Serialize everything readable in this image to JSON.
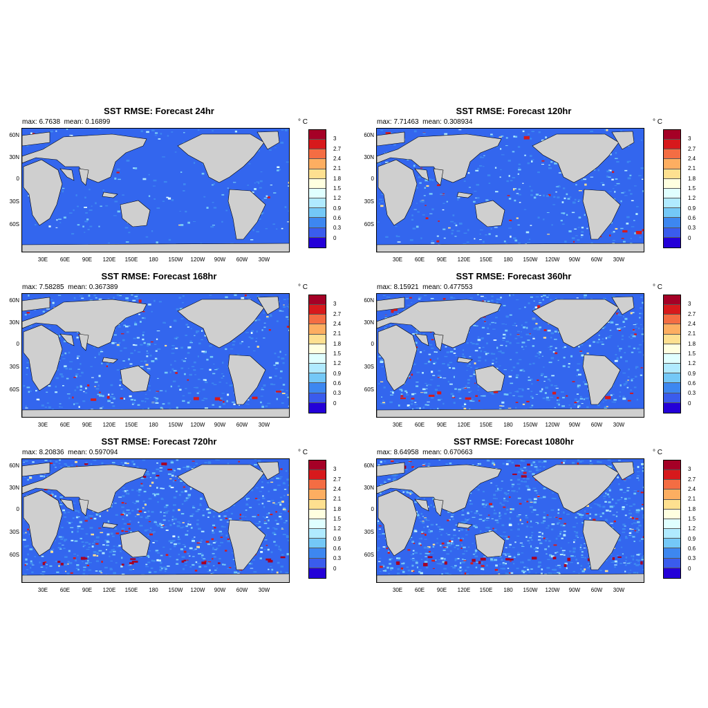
{
  "unit_label": "° C",
  "latitude_labels": [
    "60N",
    "30N",
    "0",
    "30S",
    "60S"
  ],
  "longitude_labels": [
    "30E",
    "60E",
    "90E",
    "120E",
    "150E",
    "180",
    "150W",
    "120W",
    "90W",
    "60W",
    "30W"
  ],
  "colorbar": {
    "levels": [
      "3",
      "2.7",
      "2.4",
      "2.1",
      "1.8",
      "1.5",
      "1.2",
      "0.9",
      "0.6",
      "0.3",
      "0"
    ],
    "colors": [
      "#a50026",
      "#d7191c",
      "#f46d43",
      "#fdae61",
      "#fee090",
      "#ffffe0",
      "#e0ffff",
      "#b0eaff",
      "#74c8f7",
      "#3d87f0",
      "#3a5ced",
      "#2400d8"
    ]
  },
  "colors": {
    "land": "#cfcfcf",
    "ocean": "#3366ee",
    "coast": "#000000"
  },
  "panels": [
    {
      "title": "SST RMSE: Forecast 24hr",
      "stats": "max: 6.7638  mean: 0.16899"
    },
    {
      "title": "SST RMSE: Forecast 120hr",
      "stats": "max: 7.71463  mean: 0.308934"
    },
    {
      "title": "SST RMSE: Forecast 168hr",
      "stats": "max: 7.58285  mean: 0.367389"
    },
    {
      "title": "SST RMSE: Forecast 360hr",
      "stats": "max: 8.15921  mean: 0.477553"
    },
    {
      "title": "SST RMSE: Forecast 720hr",
      "stats": "max: 8.20836  mean: 0.597094"
    },
    {
      "title": "SST RMSE: Forecast 1080hr",
      "stats": "max: 8.64958  mean: 0.670663"
    }
  ]
}
